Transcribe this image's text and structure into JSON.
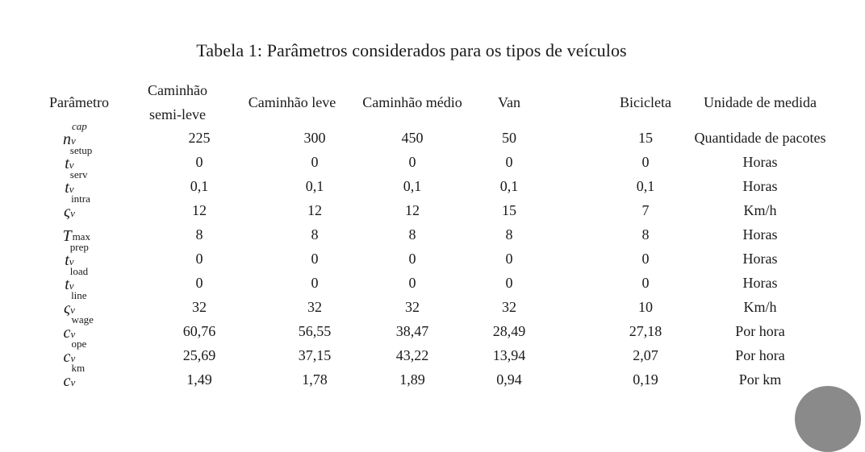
{
  "caption": "Tabela 1: Parâmetros considerados para os tipos de veículos",
  "header": {
    "param": "Parâmetro",
    "semi_leve_line1": "Caminhão",
    "semi_leve_line2": "semi-leve",
    "leve": "Caminhão leve",
    "medio": "Caminhão médio",
    "van": "Van",
    "bicicleta": "Bicicleta",
    "unidade": "Unidade de medida"
  },
  "params": [
    {
      "base": "n",
      "sup": "cap",
      "sub": "v"
    },
    {
      "base": "t",
      "sup": "setup",
      "sub": "v"
    },
    {
      "base": "t",
      "sup": "serv",
      "sub": "v"
    },
    {
      "base": "ς",
      "sup": "intra",
      "sub": "v"
    },
    {
      "base": "T",
      "sub": "max"
    },
    {
      "base": "t",
      "sup": "prep",
      "sub": "v"
    },
    {
      "base": "t",
      "sup": "load",
      "sub": "v"
    },
    {
      "base": "ς",
      "sup": "line",
      "sub": "v"
    },
    {
      "base": "c",
      "sup": "wage",
      "sub": "v"
    },
    {
      "base": "c",
      "sup": "ope",
      "sub": "v"
    },
    {
      "base": "c",
      "sup": "km",
      "sub": "v"
    }
  ],
  "rows": [
    {
      "semi_leve": "225",
      "leve": "300",
      "medio": "450",
      "van": "50",
      "bicicleta": "15",
      "unidade": "Quantidade de pacotes"
    },
    {
      "semi_leve": "0",
      "leve": "0",
      "medio": "0",
      "van": "0",
      "bicicleta": "0",
      "unidade": "Horas"
    },
    {
      "semi_leve": "0,1",
      "leve": "0,1",
      "medio": "0,1",
      "van": "0,1",
      "bicicleta": "0,1",
      "unidade": "Horas"
    },
    {
      "semi_leve": "12",
      "leve": "12",
      "medio": "12",
      "van": "15",
      "bicicleta": "7",
      "unidade": "Km/h"
    },
    {
      "semi_leve": "8",
      "leve": "8",
      "medio": "8",
      "van": "8",
      "bicicleta": "8",
      "unidade": "Horas"
    },
    {
      "semi_leve": "0",
      "leve": "0",
      "medio": "0",
      "van": "0",
      "bicicleta": "0",
      "unidade": "Horas"
    },
    {
      "semi_leve": "0",
      "leve": "0",
      "medio": "0",
      "van": "0",
      "bicicleta": "0",
      "unidade": "Horas"
    },
    {
      "semi_leve": "32",
      "leve": "32",
      "medio": "32",
      "van": "32",
      "bicicleta": "10",
      "unidade": "Km/h"
    },
    {
      "semi_leve": "60,76",
      "leve": "56,55",
      "medio": "38,47",
      "van": "28,49",
      "bicicleta": "27,18",
      "unidade": "Por hora"
    },
    {
      "semi_leve": "25,69",
      "leve": "37,15",
      "medio": "43,22",
      "van": "13,94",
      "bicicleta": "2,07",
      "unidade": "Por hora"
    },
    {
      "semi_leve": "1,49",
      "leve": "1,78",
      "medio": "1,89",
      "van": "0,94",
      "bicicleta": "0,19",
      "unidade": "Por km"
    }
  ]
}
